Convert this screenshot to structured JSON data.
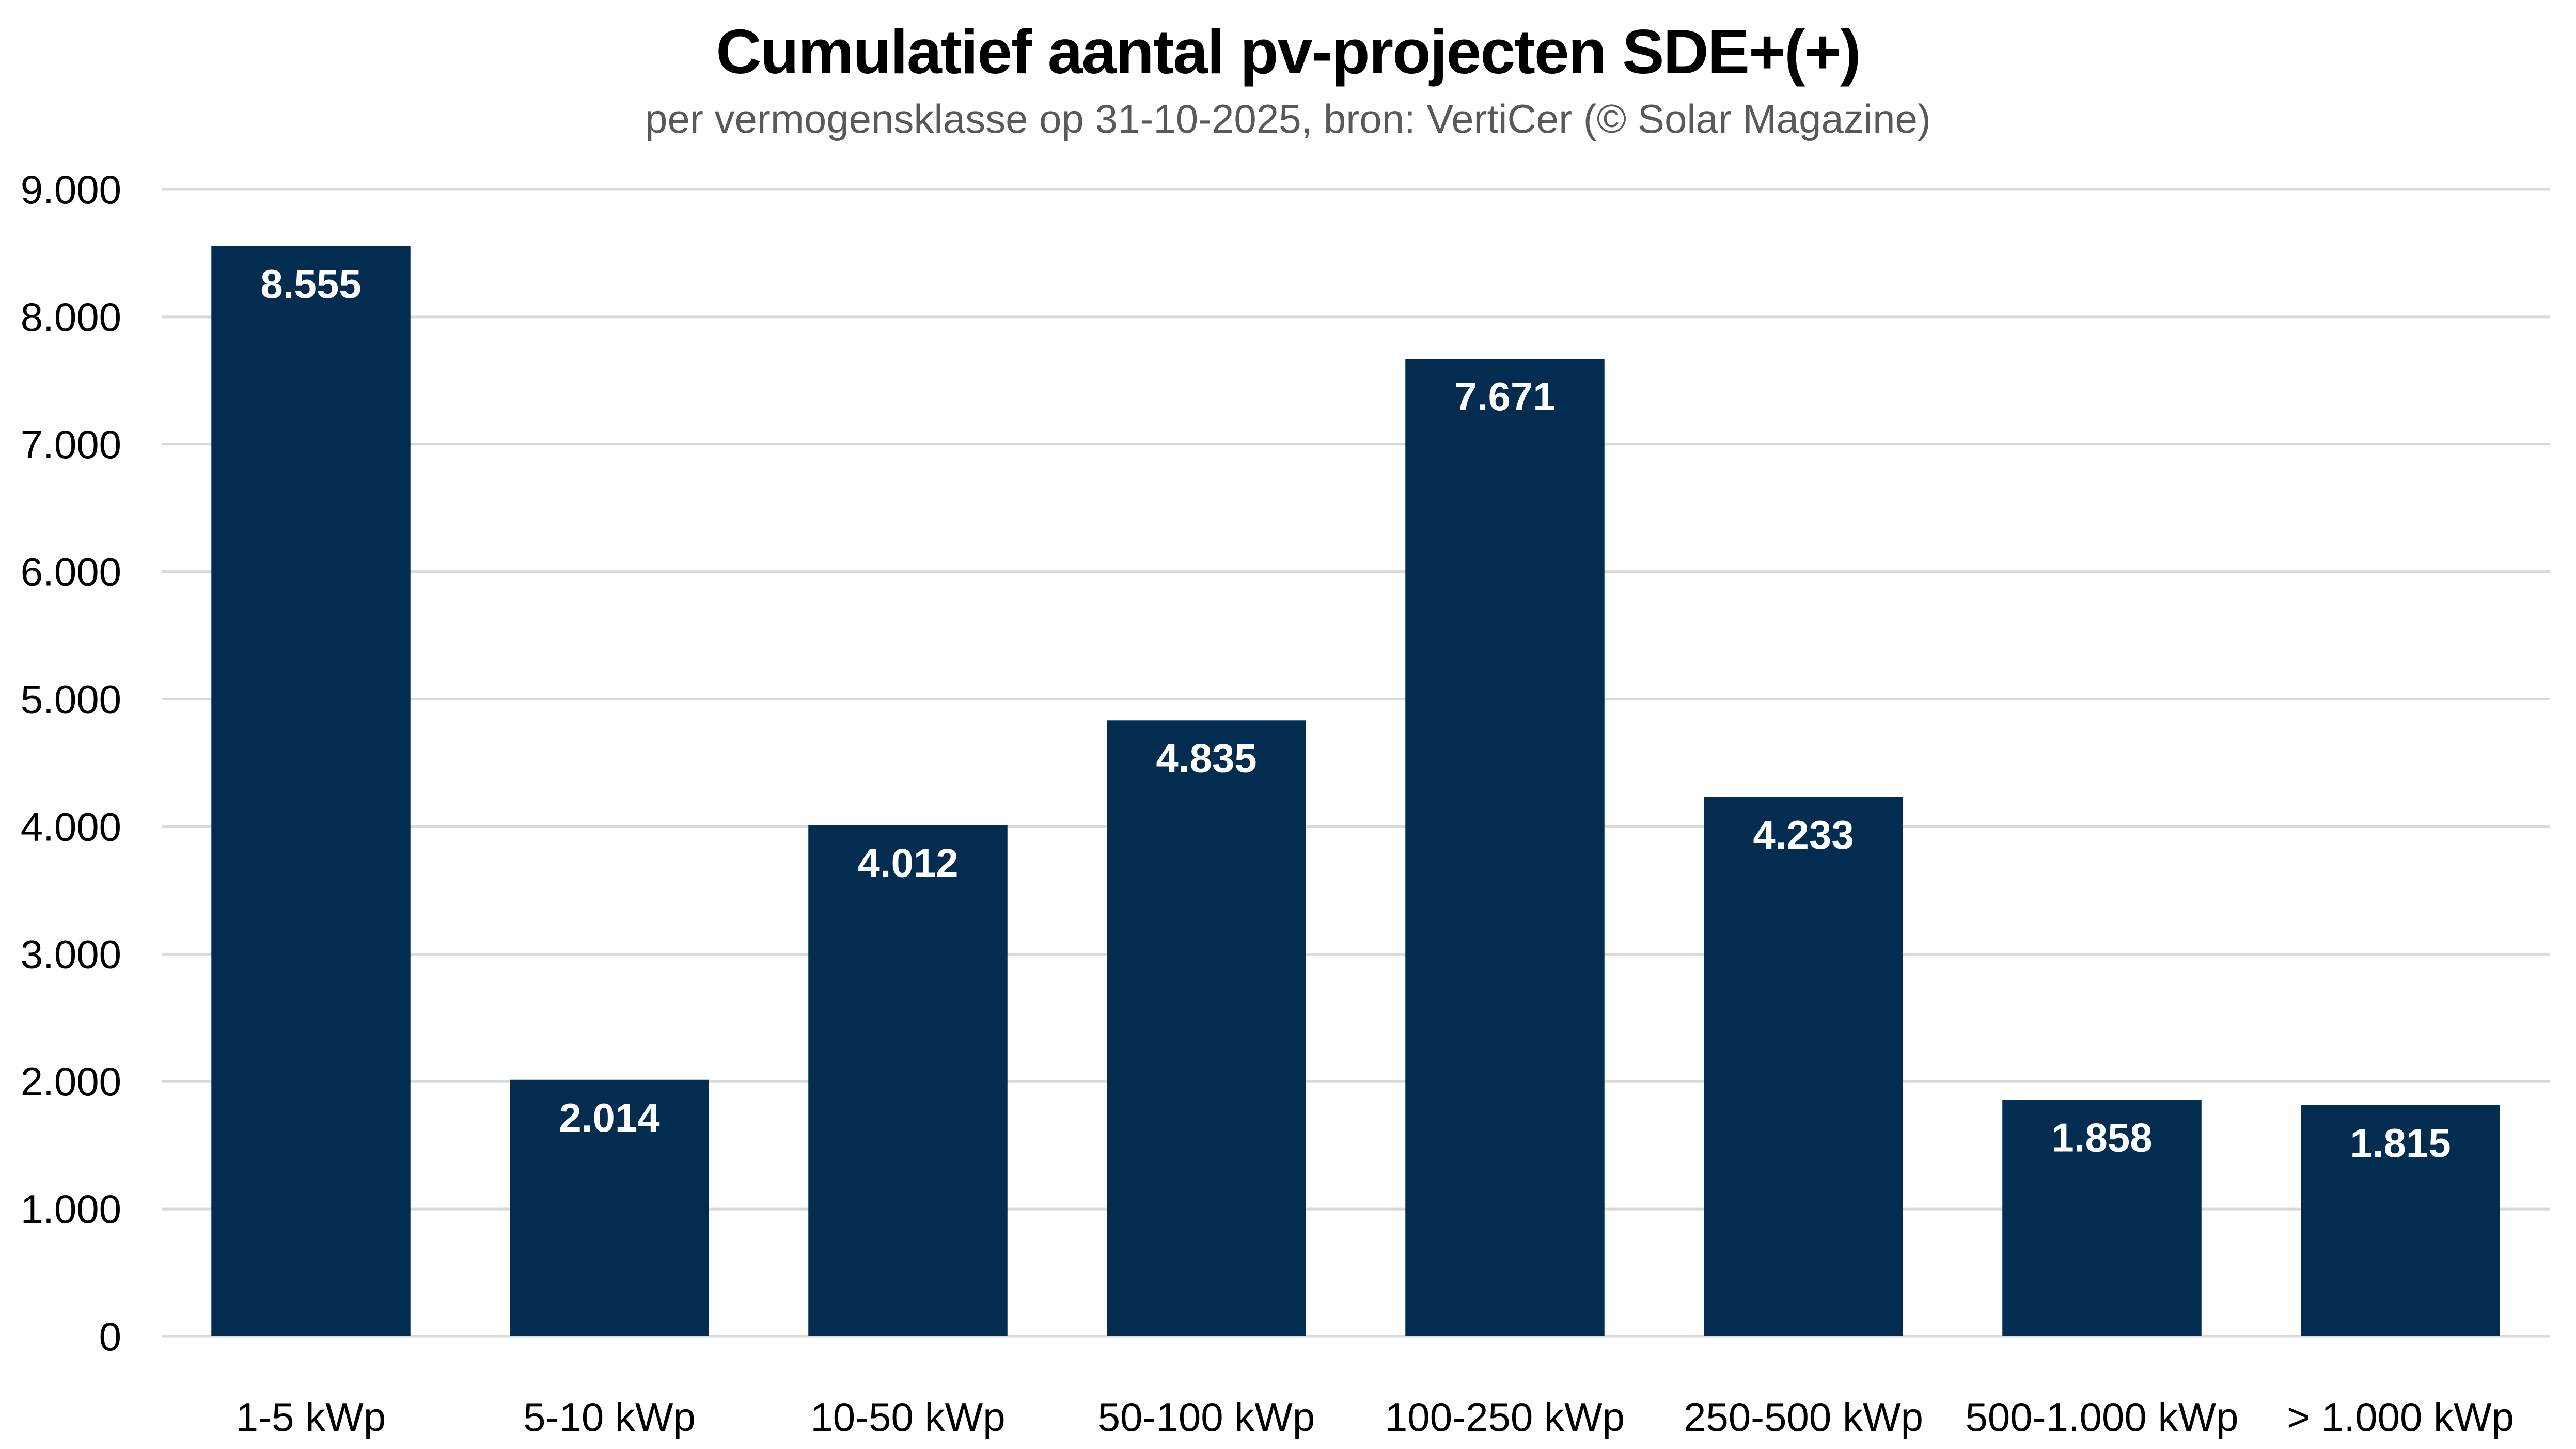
{
  "chart_data": {
    "type": "bar",
    "title": "Cumulatief aantal pv-projecten SDE+(+)",
    "subtitle": "per vermogensklasse op 31-10-2025, bron: VertiCer (© Solar Magazine)",
    "categories": [
      "1-5 kWp",
      "5-10 kWp",
      "10-50 kWp",
      "50-100 kWp",
      "100-250 kWp",
      "250-500 kWp",
      "500-1.000 kWp",
      "> 1.000 kWp"
    ],
    "values": [
      8555,
      2014,
      4012,
      4835,
      7671,
      4233,
      1858,
      1815
    ],
    "data_labels": [
      "8.555",
      "2.014",
      "4.012",
      "4.835",
      "7.671",
      "4.233",
      "1.858",
      "1.815"
    ],
    "xlabel": "",
    "ylabel": "",
    "ylim": [
      0,
      9000
    ],
    "yticks": [
      0,
      1000,
      2000,
      3000,
      4000,
      5000,
      6000,
      7000,
      8000,
      9000
    ],
    "ytick_labels": [
      "0",
      "1.000",
      "2.000",
      "3.000",
      "4.000",
      "5.000",
      "6.000",
      "7.000",
      "8.000",
      "9.000"
    ],
    "grid": true,
    "legend": "none",
    "colors": {
      "bar": "#022d50",
      "grid": "#d9d9d9",
      "label": "#ffffff"
    }
  }
}
